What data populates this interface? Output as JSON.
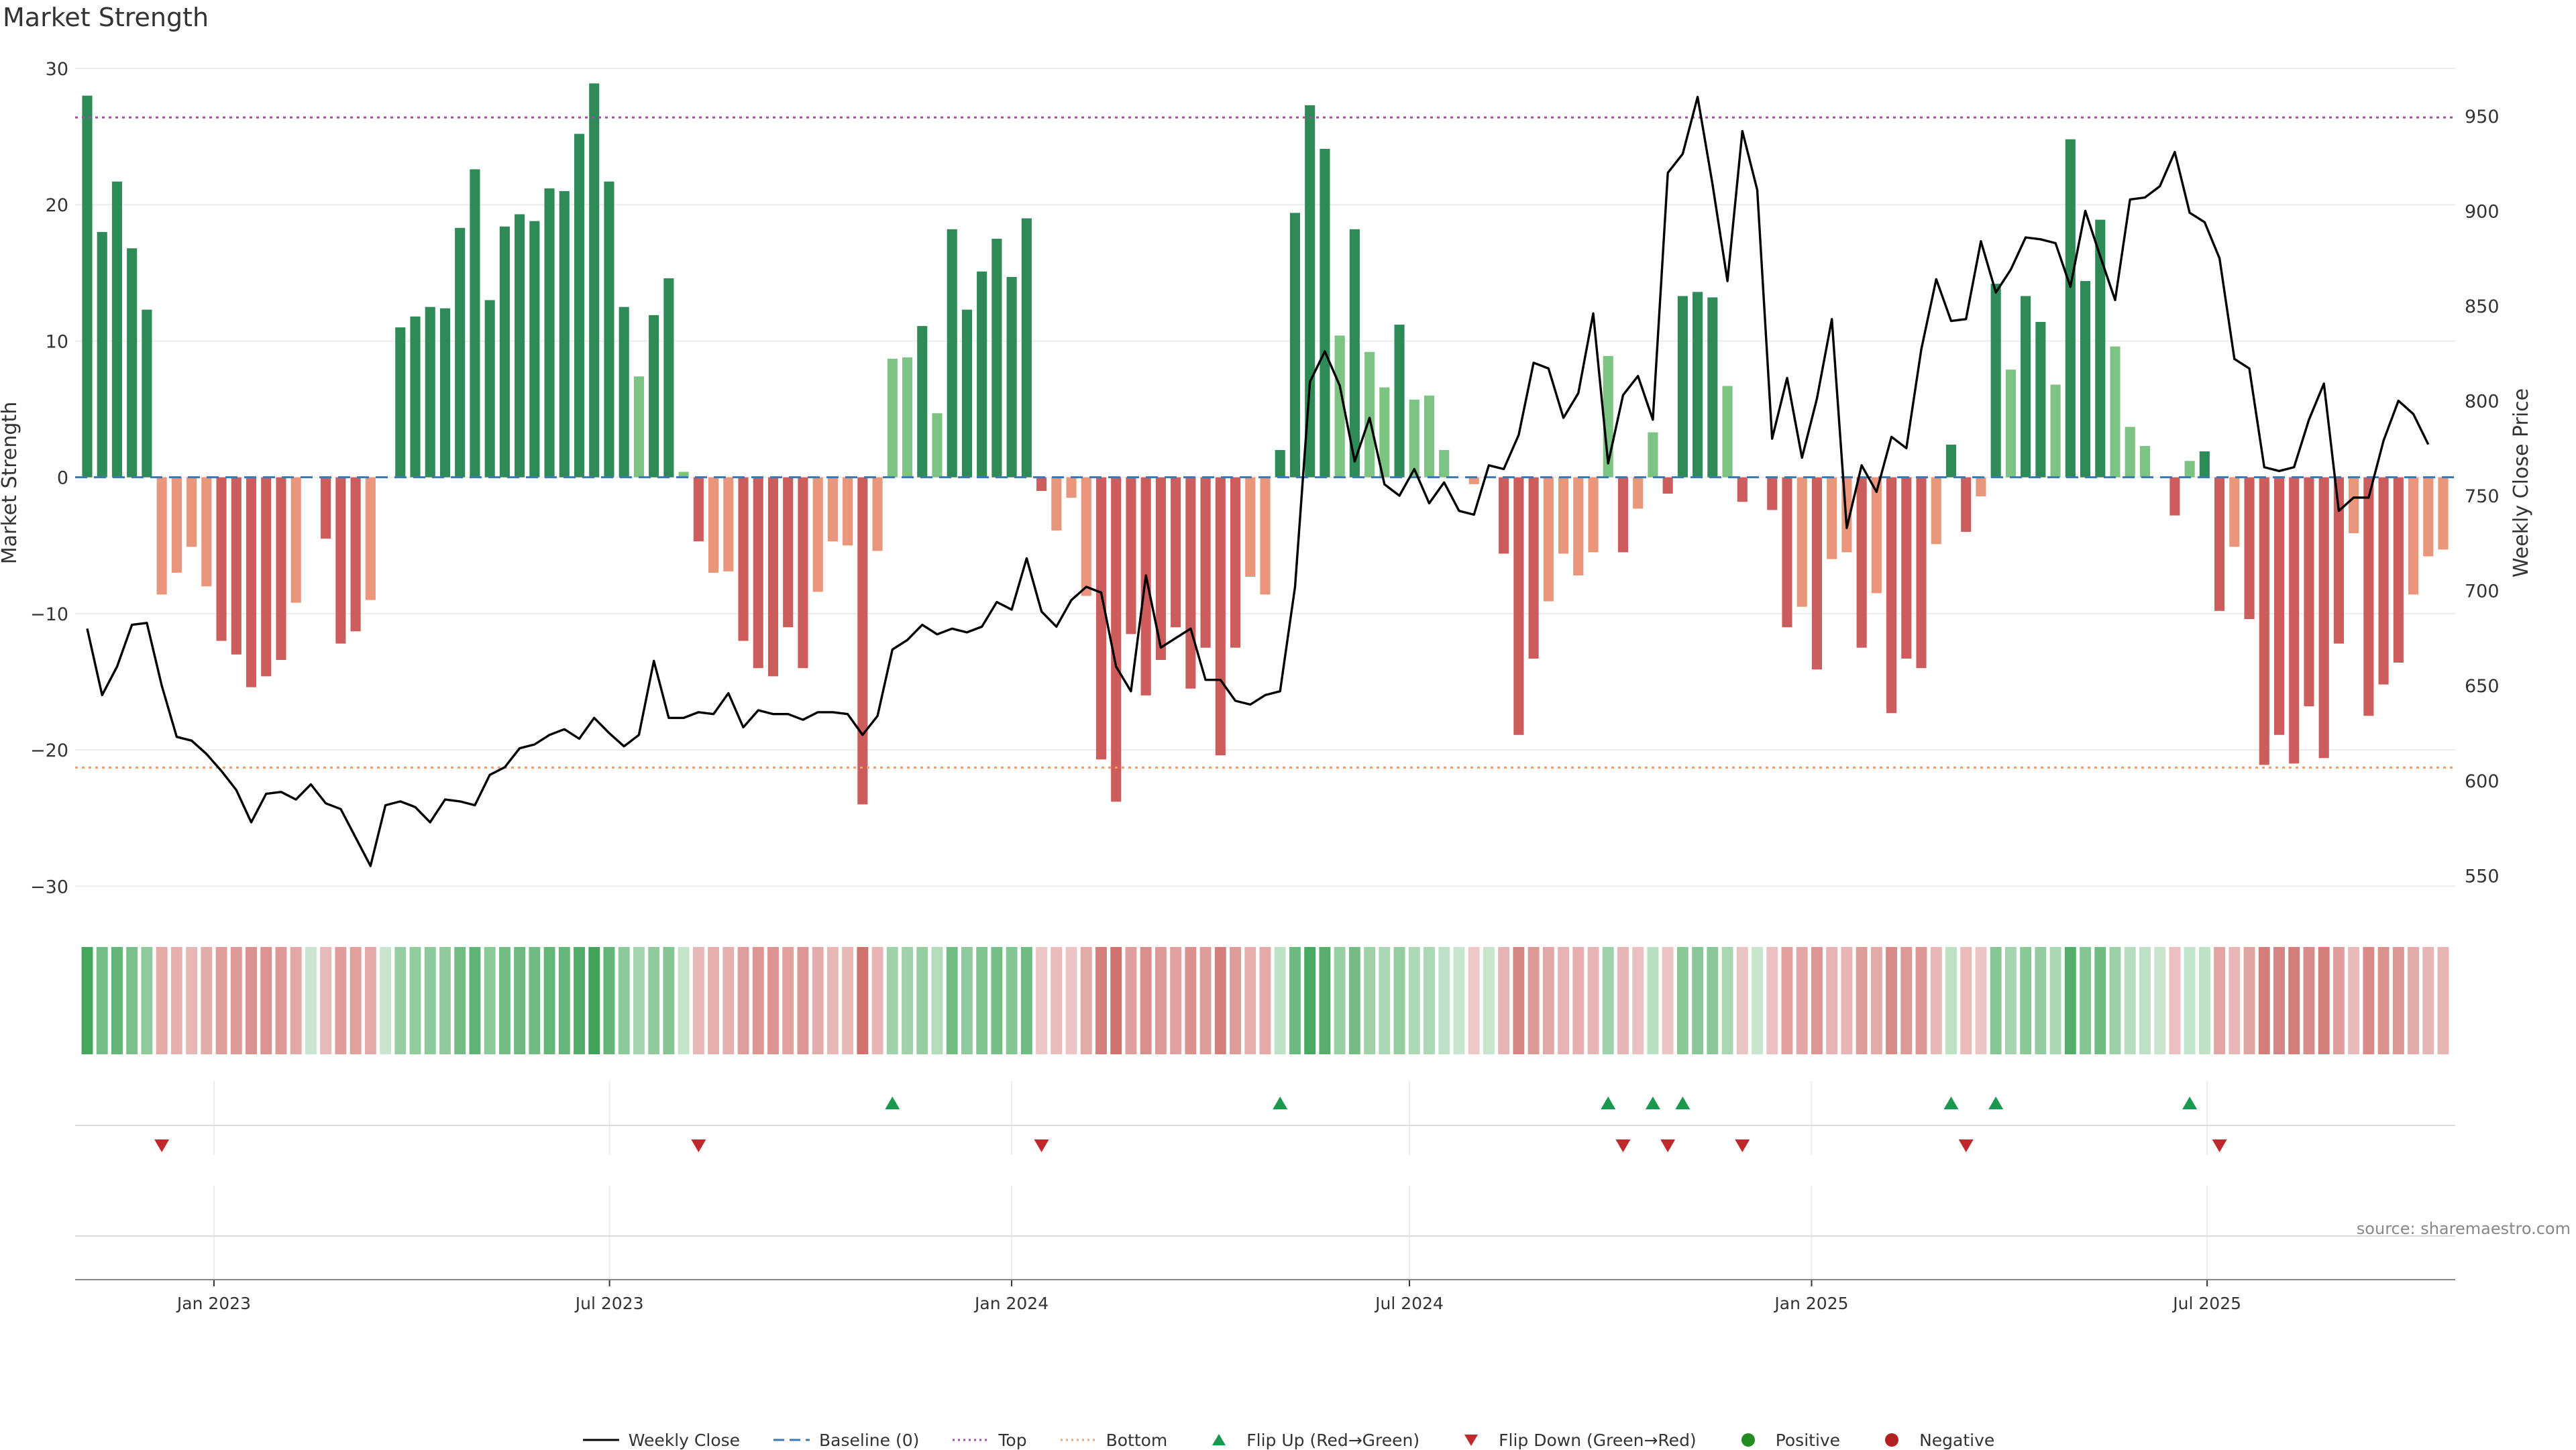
{
  "title": "Market Strength",
  "source": "source: sharemaestro.com",
  "colors": {
    "strong_green": "#2e8b57",
    "light_green": "#7dc383",
    "strong_red": "#cd5c5c",
    "light_red": "#e9967a",
    "close_line": "#000000",
    "baseline": "#3a78b5",
    "top_line": "#a64ca6",
    "bottom_line": "#f0a070",
    "flip_up": "#1a9850",
    "flip_down": "#c0282d"
  },
  "legend": [
    {
      "key": "close",
      "label": "Weekly Close",
      "icon": "solid-line"
    },
    {
      "key": "baseline",
      "label": "Baseline (0)",
      "icon": "dashed-line"
    },
    {
      "key": "top",
      "label": "Top",
      "icon": "dotted-line"
    },
    {
      "key": "bottom",
      "label": "Bottom",
      "icon": "dotted-line"
    },
    {
      "key": "flip_up",
      "label": "Flip Up (Red→Green)",
      "icon": "triangle-up"
    },
    {
      "key": "flip_down",
      "label": "Flip Down (Green→Red)",
      "icon": "triangle-down"
    },
    {
      "key": "positive",
      "label": "Positive",
      "icon": "circle"
    },
    {
      "key": "negative",
      "label": "Negative",
      "icon": "circle"
    }
  ],
  "chart_data": {
    "type": "bar",
    "ylabel": "Market Strength",
    "y2label": "Weekly Close Price",
    "ylim": [
      -32,
      30
    ],
    "yticks": [
      30,
      20,
      10,
      0,
      -10,
      -20,
      -30
    ],
    "y2lim": [
      530,
      975
    ],
    "y2ticks": [
      550,
      600,
      650,
      700,
      750,
      800,
      850,
      900,
      950
    ],
    "top_level": 26.4,
    "bottom_level": -21.3,
    "baseline": 0,
    "x_start": "2022-11-04",
    "x_end": "2025-10-17",
    "xticks": [
      {
        "label": "Jan 2023",
        "date": "2023-01-01"
      },
      {
        "label": "Jul 2023",
        "date": "2023-07-01"
      },
      {
        "label": "Jan 2024",
        "date": "2024-01-01"
      },
      {
        "label": "Jul 2024",
        "date": "2024-07-01"
      },
      {
        "label": "Jan 2025",
        "date": "2025-01-01"
      },
      {
        "label": "Jul 2025",
        "date": "2025-07-01"
      }
    ],
    "strength": [
      28.0,
      18.0,
      21.7,
      16.8,
      12.3,
      -8.6,
      -7.0,
      -5.1,
      -8.0,
      -12.0,
      -13.0,
      -15.4,
      -14.6,
      -13.4,
      -9.2,
      0.0,
      -4.5,
      -12.2,
      -11.3,
      -9.0,
      0.0,
      11.0,
      11.8,
      12.5,
      12.4,
      18.3,
      22.6,
      13.0,
      18.4,
      19.3,
      18.8,
      21.2,
      21.0,
      25.2,
      28.9,
      21.7,
      12.5,
      7.4,
      11.9,
      14.6,
      0.4,
      -4.7,
      -7.0,
      -6.9,
      -12.0,
      -14.0,
      -14.6,
      -11.0,
      -14.0,
      -8.4,
      -4.7,
      -5.0,
      -24.0,
      -5.4,
      8.7,
      8.8,
      11.1,
      4.7,
      18.2,
      12.3,
      15.1,
      17.5,
      14.7,
      19.0,
      -1.0,
      -3.9,
      -1.5,
      -8.7,
      -20.7,
      -23.8,
      -11.5,
      -16.0,
      -13.4,
      -11.0,
      -15.5,
      -12.5,
      -20.4,
      -12.5,
      -7.3,
      -8.6,
      2.0,
      19.4,
      27.3,
      24.1,
      10.4,
      18.2,
      9.2,
      6.6,
      11.2,
      5.7,
      6.0,
      2.0,
      0.0,
      -0.5,
      0.0,
      -5.6,
      -18.9,
      -13.3,
      -9.1,
      -5.6,
      -7.2,
      -5.5,
      8.9,
      -5.5,
      -2.3,
      3.3,
      -1.2,
      13.3,
      13.6,
      13.2,
      6.7,
      -1.8,
      0.0,
      -2.4,
      -11.0,
      -9.5,
      -14.1,
      -6.0,
      -5.5,
      -12.5,
      -8.5,
      -17.3,
      -13.3,
      -14.0,
      -4.9,
      2.4,
      -4.0,
      -1.4,
      14.2,
      7.9,
      13.3,
      11.4,
      6.8,
      24.8,
      14.4,
      18.9,
      9.6,
      3.7,
      2.3,
      0.0,
      -2.8,
      1.2,
      1.9,
      -9.8,
      -5.1,
      -10.4,
      -21.1,
      -18.9,
      -21.0,
      -16.8,
      -20.6,
      -12.2,
      -4.1,
      -17.5,
      -15.2,
      -13.6,
      -8.6,
      -5.8,
      -5.3
    ],
    "close": [
      680,
      645,
      660,
      682,
      683,
      650,
      623,
      621,
      614,
      605,
      595,
      578,
      593,
      594,
      590,
      598,
      588,
      585,
      570,
      555,
      587,
      589,
      586,
      578,
      590,
      589,
      587,
      603,
      607,
      617,
      619,
      624,
      627,
      622,
      633,
      625,
      618,
      624,
      663,
      633,
      633,
      636,
      635,
      646,
      628,
      637,
      635,
      635,
      632,
      636,
      636,
      635,
      624,
      634,
      669,
      674,
      682,
      677,
      680,
      678,
      681,
      694,
      690,
      717,
      689,
      681,
      695,
      702,
      699,
      660,
      647,
      708,
      670,
      675,
      680,
      653,
      653,
      642,
      640,
      645,
      647,
      702,
      810,
      826,
      808,
      768,
      791,
      756,
      750,
      764,
      746,
      757,
      742,
      740,
      766,
      764,
      782,
      820,
      817,
      791,
      804,
      846,
      767,
      803,
      813,
      790,
      920,
      930,
      960,
      914,
      863,
      942,
      911,
      780,
      812,
      770,
      801,
      843,
      733,
      766,
      752,
      781,
      775,
      827,
      864,
      842,
      843,
      884,
      857,
      869,
      886,
      885,
      883,
      860,
      900,
      876,
      853,
      906,
      907,
      913,
      931,
      899,
      894,
      875,
      822,
      817,
      765,
      763,
      765,
      790,
      809,
      742,
      749,
      749,
      779,
      800,
      793,
      777
    ]
  }
}
